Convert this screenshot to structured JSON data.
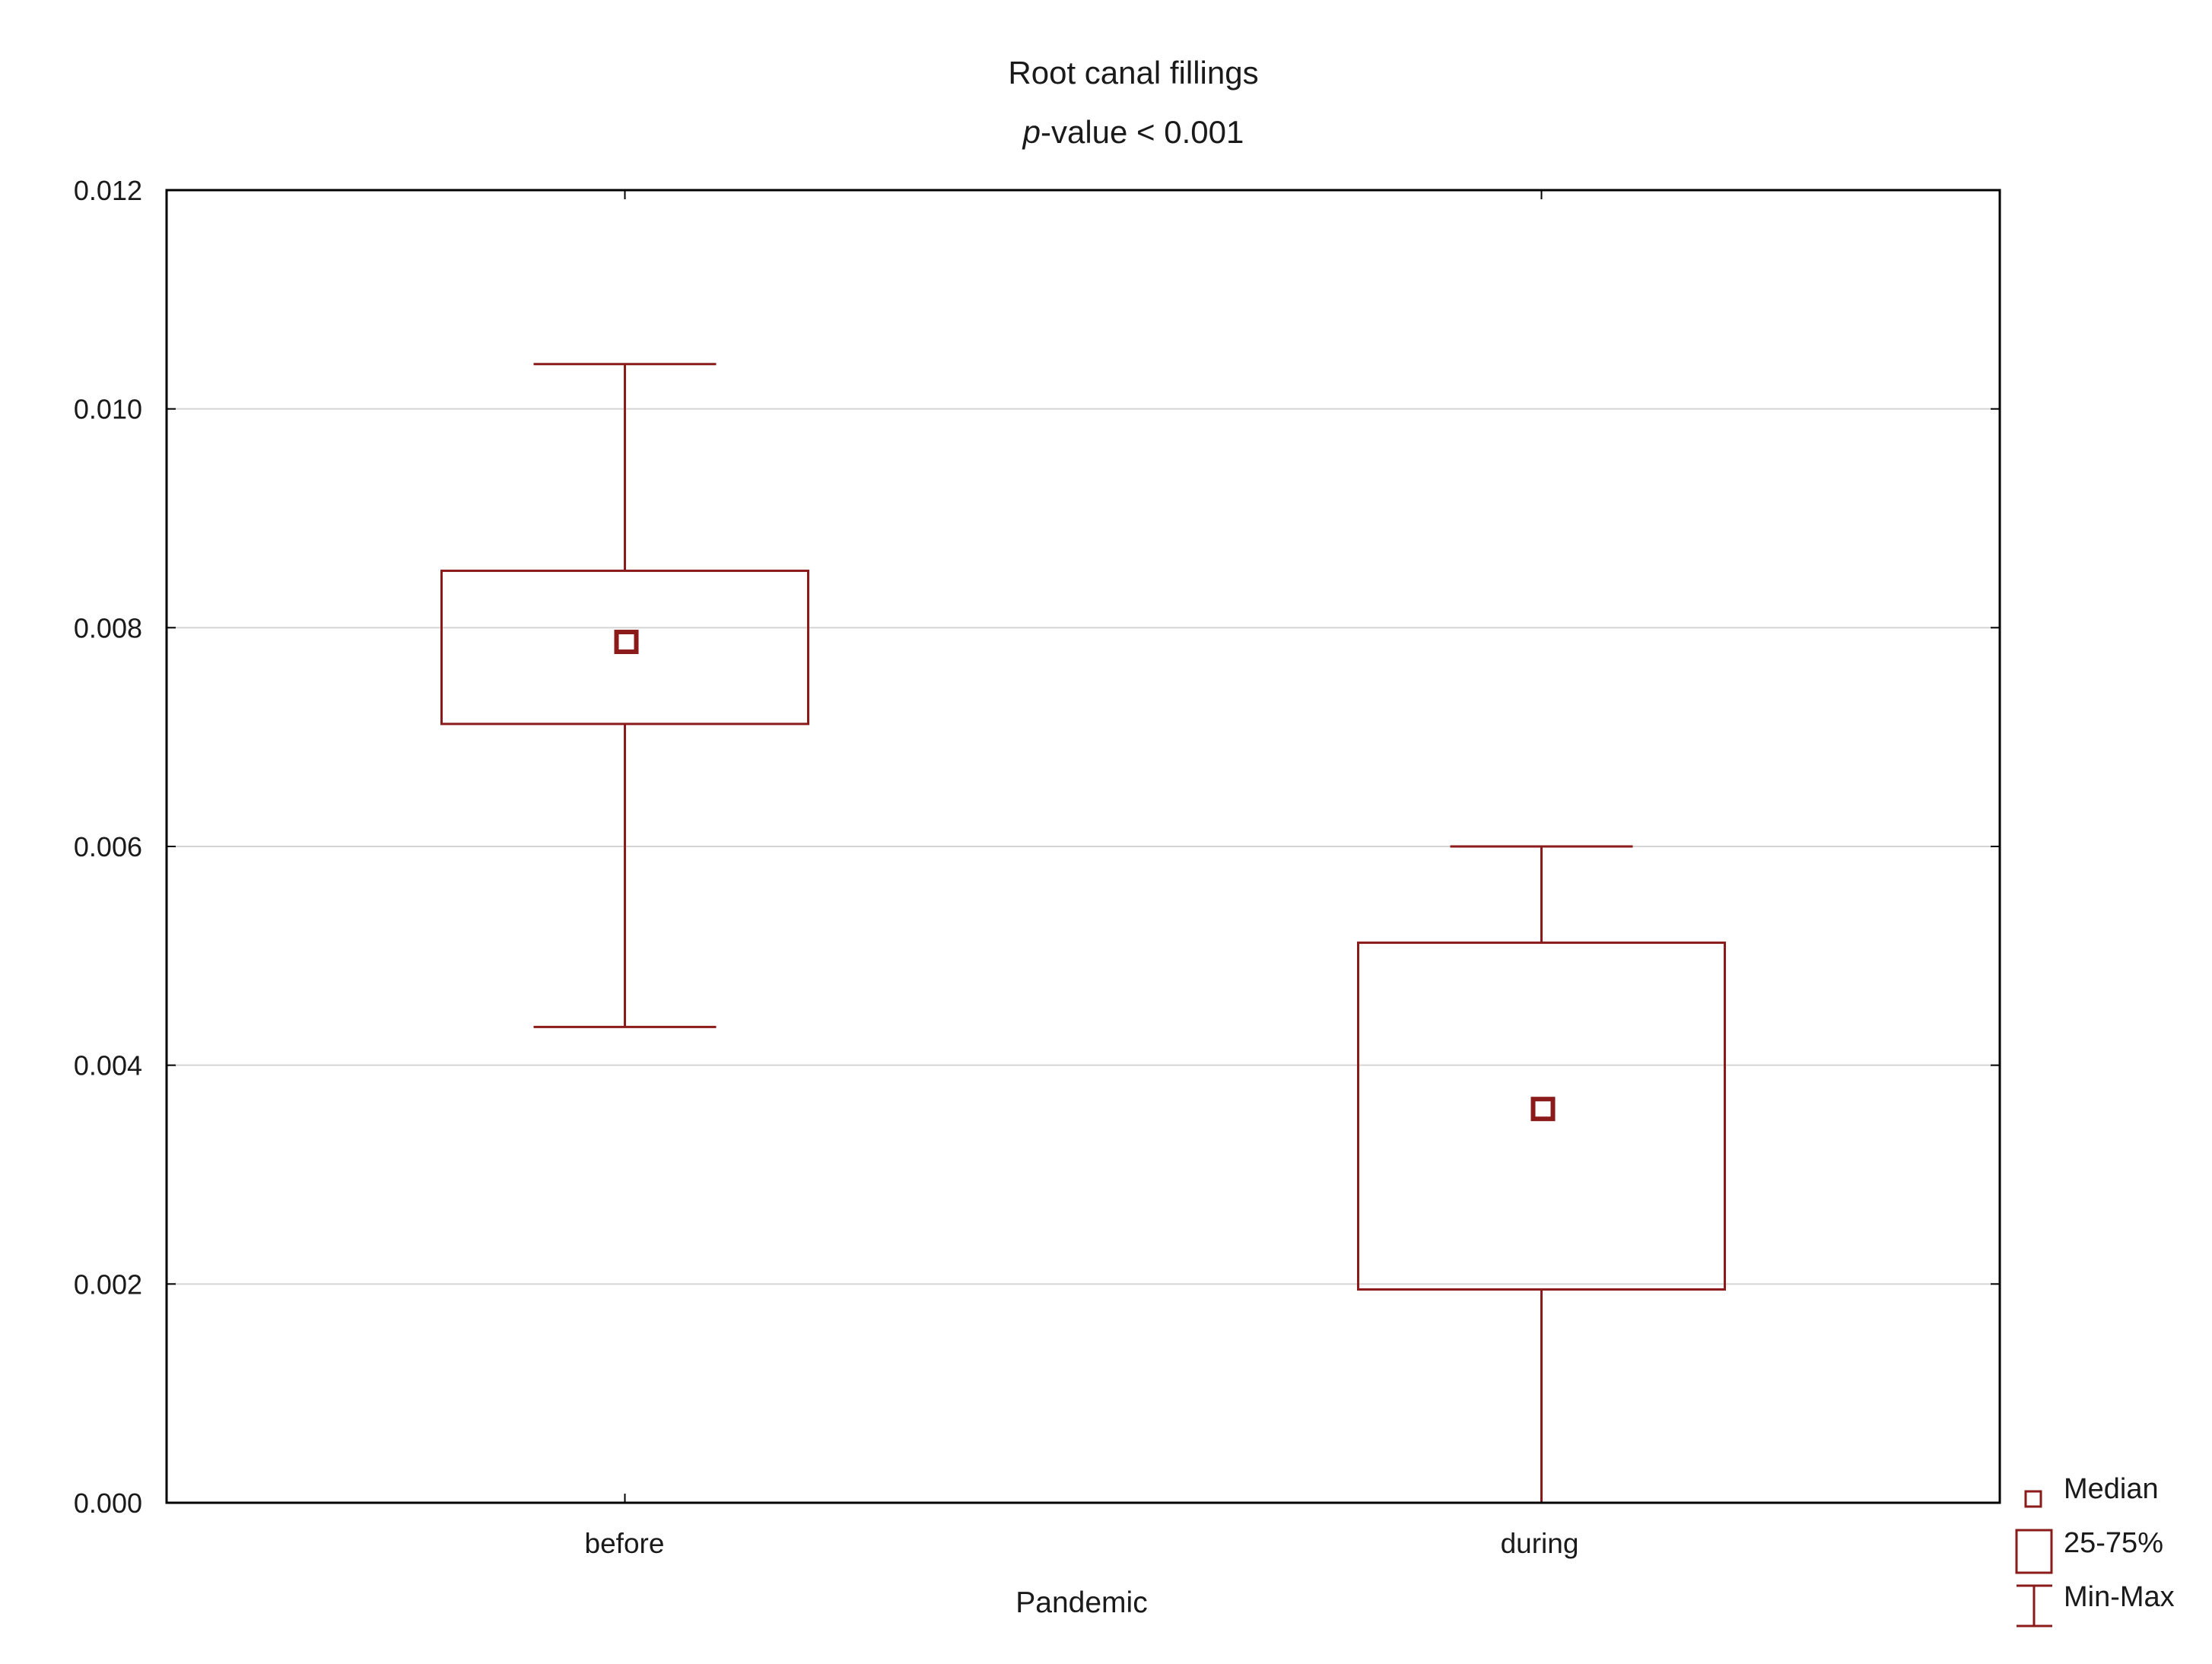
{
  "chart_data": {
    "type": "box",
    "title": "Root canal fillings",
    "subtitle": {
      "italic_prefix": "p",
      "rest": "-value < 0.001"
    },
    "xlabel": "Pandemic",
    "ylabel": "",
    "ylim": [
      0,
      0.012
    ],
    "yticks": [
      "0.000",
      "0.002",
      "0.004",
      "0.006",
      "0.008",
      "0.010",
      "0.012"
    ],
    "grid": true,
    "legend_position": "bottom-right",
    "legend": {
      "median": "Median",
      "box": "25-75%",
      "whisker": "Min-Max"
    },
    "categories": [
      "before",
      "during"
    ],
    "boxes": [
      {
        "category": "before",
        "min": 0.00435,
        "q1": 0.00712,
        "median": 0.00787,
        "q3": 0.00852,
        "max": 0.01041
      },
      {
        "category": "during",
        "min": 0.0,
        "q1": 0.00195,
        "median": 0.0036,
        "q3": 0.00512,
        "max": 0.006
      }
    ],
    "colors": {
      "series": "#8b1a1a",
      "axis": "#000000",
      "grid": "#d4d4d4"
    }
  }
}
